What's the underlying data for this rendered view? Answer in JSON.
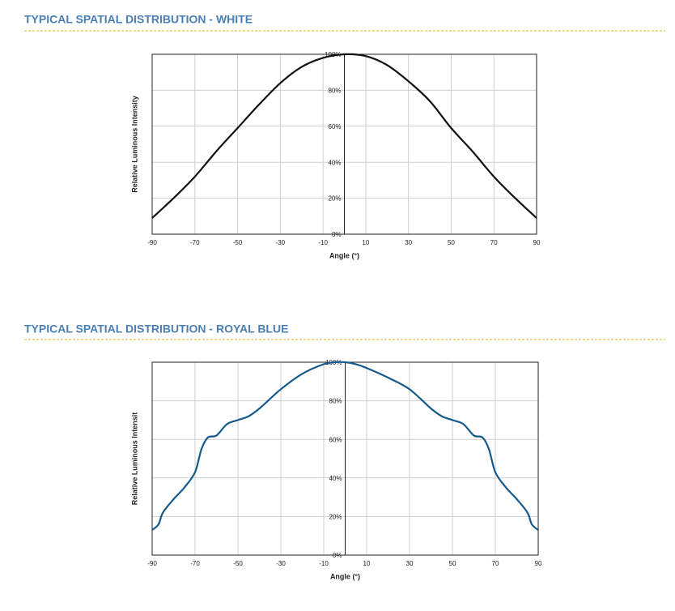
{
  "chart_data": [
    {
      "type": "line",
      "title": "TYPICAL SPATIAL DISTRIBUTION - WHITE",
      "x_label": "Angle (°)",
      "y_label": "Relative Luminous Intensity",
      "x": [
        -90,
        -80,
        -70,
        -60,
        -50,
        -40,
        -30,
        -20,
        -10,
        0,
        10,
        20,
        30,
        40,
        50,
        60,
        70,
        80,
        90
      ],
      "values": [
        9,
        20,
        32,
        46,
        59,
        72,
        84,
        93,
        98,
        100,
        99,
        94,
        85,
        74,
        59,
        46,
        32,
        20,
        9
      ],
      "color": "#111111",
      "xlim": [
        -90,
        90
      ],
      "xticks": [
        -90,
        -70,
        -50,
        -30,
        -10,
        10,
        30,
        50,
        70,
        90
      ],
      "ylim": [
        0,
        100
      ],
      "yticks": [
        {
          "value": 0,
          "label": "0%"
        },
        {
          "value": 20,
          "label": "20%"
        },
        {
          "value": 40,
          "label": "40%"
        },
        {
          "value": 60,
          "label": "60%"
        },
        {
          "value": 80,
          "label": "80%"
        },
        {
          "value": 100,
          "label": "100%"
        }
      ],
      "grid": true
    },
    {
      "type": "line",
      "title": "TYPICAL SPATIAL DISTRIBUTION - ROYAL BLUE",
      "x_label": "Angle (°)",
      "y_label": "Relative Luminous Intensit",
      "x": [
        -90,
        -87,
        -85,
        -80,
        -75,
        -70,
        -67,
        -64,
        -60,
        -55,
        -50,
        -45,
        -40,
        -30,
        -20,
        -10,
        -5,
        0,
        5,
        10,
        20,
        30,
        40,
        45,
        50,
        55,
        60,
        64,
        67,
        70,
        75,
        80,
        85,
        87,
        90
      ],
      "values": [
        13,
        16,
        22,
        29,
        35,
        43,
        55,
        61,
        62,
        68,
        70,
        72,
        76,
        86,
        94,
        99,
        100,
        100,
        99,
        97,
        92,
        86,
        76,
        72,
        70,
        68,
        62,
        61,
        55,
        43,
        35,
        29,
        22,
        16,
        13
      ],
      "color": "#145a8c",
      "xlim": [
        -90,
        90
      ],
      "xticks": [
        -90,
        -70,
        -50,
        -30,
        -10,
        10,
        30,
        50,
        70,
        90
      ],
      "ylim": [
        0,
        100
      ],
      "yticks": [
        {
          "value": 0,
          "label": "0%"
        },
        {
          "value": 20,
          "label": "20%"
        },
        {
          "value": 40,
          "label": "40%"
        },
        {
          "value": 60,
          "label": "60%"
        },
        {
          "value": 80,
          "label": "80%"
        },
        {
          "value": 100,
          "label": "100%"
        }
      ],
      "grid": true
    }
  ]
}
